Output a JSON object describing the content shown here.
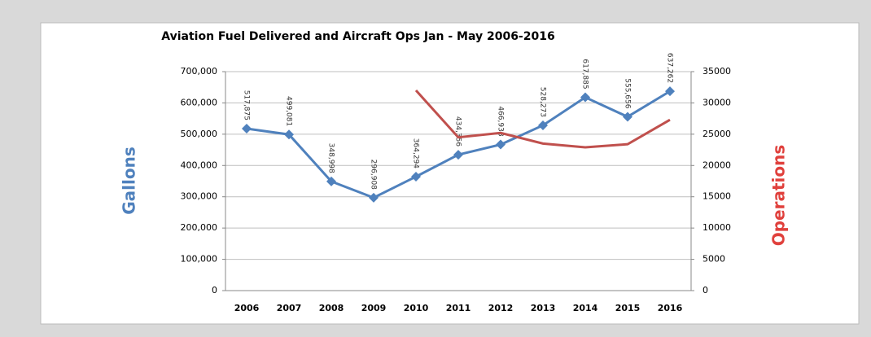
{
  "chart_data": {
    "type": "line",
    "title": "Aviation Fuel Delivered and Aircraft Ops Jan - May 2006-2016",
    "ylabel": "Gallons",
    "y2label": "Operations",
    "ylabel_color": "#4f81bd",
    "y2label_color": "#e0403c",
    "categories": [
      "2006",
      "2007",
      "2008",
      "2009",
      "2010",
      "2011",
      "2012",
      "2013",
      "2014",
      "2015",
      "2016"
    ],
    "series": [
      {
        "color": "#4f81bd",
        "marker": "diamond",
        "values": [
          517875,
          499081,
          348998,
          296908,
          364294,
          434356,
          466938,
          528273,
          617885,
          555656,
          637262
        ],
        "value_labels": [
          "517,875",
          "499,081",
          "348,998",
          "296,908",
          "364,294",
          "434,356",
          "466,938",
          "528,273",
          "617,885",
          "555,656",
          "637,262"
        ]
      },
      {
        "color": "#c0504d",
        "axis": "y2",
        "values": [
          null,
          null,
          null,
          null,
          32000,
          24500,
          25200,
          23500,
          22900,
          23400,
          27300
        ]
      }
    ],
    "ylim": [
      0,
      700000
    ],
    "yticks": [
      0,
      {
        "value": 100000,
        "label": "100,000"
      },
      {
        "value": 200000,
        "label": "200,000"
      },
      {
        "value": 300000,
        "label": "300,000"
      },
      {
        "value": 400000,
        "label": "400,000"
      },
      {
        "value": 500000,
        "label": "500,000"
      },
      {
        "value": 600000,
        "label": "600,000"
      },
      {
        "value": 700000,
        "label": "700,000"
      }
    ],
    "y2lim": [
      0,
      35000
    ],
    "y2ticks": [
      0,
      5000,
      10000,
      15000,
      20000,
      25000,
      30000,
      35000
    ],
    "grid": true
  }
}
